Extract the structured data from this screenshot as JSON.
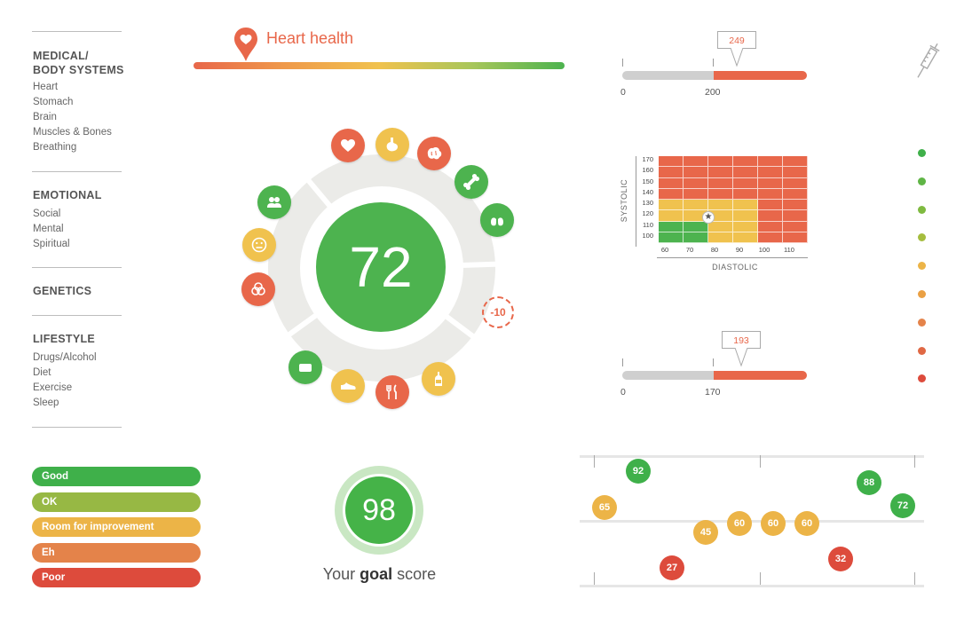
{
  "sidebar": {
    "sections": [
      {
        "title_l1": "MEDICAL/",
        "title_l2": "BODY SYSTEMS",
        "items": [
          "Heart",
          "Stomach",
          "Brain",
          "Muscles & Bones",
          "Breathing"
        ]
      },
      {
        "title": "EMOTIONAL",
        "items": [
          "Social",
          "Mental",
          "Spiritual"
        ]
      },
      {
        "title": "GENETICS",
        "items": []
      },
      {
        "title": "LIFESTYLE",
        "items": [
          "Drugs/Alcohol",
          "Diet",
          "Exercise",
          "Sleep"
        ]
      }
    ]
  },
  "legend": [
    {
      "label": "Good",
      "color": "#3fb04a"
    },
    {
      "label": "OK",
      "color": "#97b844"
    },
    {
      "label": "Room for improvement",
      "color": "#ecb447"
    },
    {
      "label": "Eh",
      "color": "#e4834a"
    },
    {
      "label": "Poor",
      "color": "#dd4b3c"
    }
  ],
  "header": {
    "title": "Heart health",
    "icon": "heart-pin-icon"
  },
  "wheel": {
    "score": "72",
    "penalty": "-10",
    "icons": [
      {
        "name": "heart-icon",
        "color": "#e8674a"
      },
      {
        "name": "stomach-icon",
        "color": "#f0c24e"
      },
      {
        "name": "brain-icon",
        "color": "#e8674a"
      },
      {
        "name": "bone-icon",
        "color": "#4db34f"
      },
      {
        "name": "lungs-icon",
        "color": "#4db34f"
      },
      {
        "name": "people-icon",
        "color": "#4db34f"
      },
      {
        "name": "face-icon",
        "color": "#f0c24e"
      },
      {
        "name": "dna-icon",
        "color": "#e8674a"
      },
      {
        "name": "bed-icon",
        "color": "#4db34f"
      },
      {
        "name": "shoe-icon",
        "color": "#f0c24e"
      },
      {
        "name": "fork-knife-icon",
        "color": "#e8674a"
      },
      {
        "name": "bottle-icon",
        "color": "#f0c24e"
      }
    ]
  },
  "goal": {
    "score": "98",
    "label_pre": "Your ",
    "label_bold": "goal",
    "label_post": " score"
  },
  "bar1": {
    "min": "0",
    "threshold": "200",
    "value": "249"
  },
  "bar2": {
    "min": "0",
    "threshold": "170",
    "value": "193"
  },
  "bp_chart": {
    "ylabel": "SYSTOLIC",
    "xlabel": "DIASTOLIC",
    "y_ticks": [
      "170",
      "160",
      "150",
      "140",
      "130",
      "120",
      "110",
      "100"
    ],
    "x_ticks": [
      "60",
      "70",
      "80",
      "90",
      "100",
      "110"
    ],
    "marker": {
      "systolic": 120,
      "diastolic": 80
    }
  },
  "status_dots": [
    "#3fb04a",
    "#5fb545",
    "#7fba40",
    "#a5bd3e",
    "#ecb447",
    "#eaa044",
    "#e4834a",
    "#e06844",
    "#dd4b3c"
  ],
  "bubbles": [
    {
      "value": "92",
      "color": "#3fb04a"
    },
    {
      "value": "65",
      "color": "#ecb447"
    },
    {
      "value": "27",
      "color": "#dd4b3c"
    },
    {
      "value": "45",
      "color": "#ecb447"
    },
    {
      "value": "60",
      "color": "#ecb447"
    },
    {
      "value": "60",
      "color": "#ecb447"
    },
    {
      "value": "60",
      "color": "#ecb447"
    },
    {
      "value": "32",
      "color": "#dd4b3c"
    },
    {
      "value": "88",
      "color": "#3fb04a"
    },
    {
      "value": "72",
      "color": "#3fb04a"
    }
  ]
}
